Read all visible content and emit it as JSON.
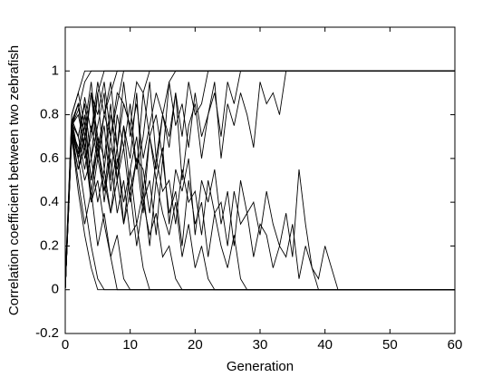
{
  "chart_data": {
    "type": "line",
    "xlabel": "Generation",
    "ylabel": "Correlation coefficient between two zebrafish",
    "xlim": [
      0,
      60
    ],
    "xticks": [
      0,
      10,
      20,
      30,
      40,
      50,
      60
    ],
    "ylim": [
      -0.2,
      1.2
    ],
    "yticks": [
      -0.2,
      0,
      0.2,
      0.4,
      0.6,
      0.8,
      1
    ],
    "grid": false,
    "color": "#000000",
    "series": [
      {
        "x": [
          0,
          1,
          2,
          3,
          4,
          60
        ],
        "values": [
          0,
          0.75,
          0.82,
          0.95,
          1,
          1
        ]
      },
      {
        "x": [
          0,
          1,
          2,
          3,
          4,
          5,
          6,
          60
        ],
        "values": [
          0,
          0.72,
          0.6,
          0.4,
          0.2,
          0.05,
          0,
          0
        ]
      },
      {
        "x": [
          0,
          1,
          2,
          3,
          4,
          5,
          6,
          60
        ],
        "values": [
          0.05,
          0.78,
          0.7,
          0.85,
          0.6,
          0.9,
          1,
          1
        ]
      },
      {
        "x": [
          0,
          1,
          2,
          3,
          4,
          5,
          6,
          7,
          8,
          60
        ],
        "values": [
          0,
          0.7,
          0.55,
          0.65,
          0.4,
          0.5,
          0.3,
          0.15,
          0,
          0
        ]
      },
      {
        "x": [
          0,
          1,
          2,
          3,
          4,
          5,
          6,
          7,
          8,
          9,
          60
        ],
        "values": [
          0,
          0.76,
          0.85,
          0.7,
          0.9,
          0.8,
          0.95,
          0.7,
          0.85,
          1,
          1
        ]
      },
      {
        "x": [
          0,
          1,
          2,
          3,
          4,
          5,
          6,
          7,
          8,
          9,
          10,
          11,
          12,
          13,
          60
        ],
        "values": [
          0,
          0.74,
          0.6,
          0.75,
          0.5,
          0.65,
          0.45,
          0.6,
          0.35,
          0.5,
          0.25,
          0.3,
          0.1,
          0,
          0
        ]
      },
      {
        "x": [
          0,
          1,
          2,
          3,
          4,
          5,
          6,
          7,
          8,
          9,
          10,
          11,
          12,
          13,
          60
        ],
        "values": [
          0,
          0.8,
          0.9,
          0.75,
          0.95,
          0.65,
          0.8,
          0.7,
          0.9,
          0.85,
          0.75,
          0.95,
          0.9,
          1,
          1
        ]
      },
      {
        "x": [
          0,
          1,
          2,
          3,
          4,
          5,
          6,
          7,
          8,
          9,
          10,
          60
        ],
        "values": [
          0,
          0.7,
          0.5,
          0.3,
          0.45,
          0.2,
          0.35,
          0.15,
          0.25,
          0.05,
          0,
          0
        ]
      },
      {
        "x": [
          0,
          1,
          2,
          3,
          4,
          5,
          6,
          7,
          8,
          9,
          10,
          11,
          12,
          13,
          14,
          15,
          16,
          17,
          60
        ],
        "values": [
          0,
          0.77,
          0.85,
          0.6,
          0.7,
          0.9,
          0.55,
          0.8,
          0.65,
          0.95,
          0.7,
          0.85,
          0.6,
          0.75,
          0.9,
          0.8,
          0.95,
          1,
          1
        ]
      },
      {
        "x": [
          0,
          1,
          2,
          3,
          4,
          5,
          6,
          7,
          8,
          9,
          10,
          11,
          12,
          13,
          14,
          15,
          16,
          17,
          18,
          60
        ],
        "values": [
          0,
          0.73,
          0.65,
          0.5,
          0.6,
          0.4,
          0.55,
          0.35,
          0.5,
          0.3,
          0.45,
          0.2,
          0.4,
          0.25,
          0.35,
          0.15,
          0.2,
          0.05,
          0,
          0
        ]
      },
      {
        "x": [
          0,
          1,
          2,
          3,
          4,
          5,
          6,
          7,
          8,
          9,
          10,
          11,
          12,
          13,
          14,
          15,
          16,
          17,
          18,
          19,
          20,
          21,
          22,
          60
        ],
        "values": [
          0,
          0.75,
          0.8,
          0.65,
          0.9,
          0.7,
          0.6,
          0.85,
          0.5,
          0.75,
          0.6,
          0.9,
          0.45,
          0.7,
          0.55,
          0.8,
          0.65,
          0.9,
          0.7,
          0.95,
          0.8,
          0.85,
          1,
          1
        ]
      },
      {
        "x": [
          0,
          1,
          2,
          3,
          4,
          5,
          6,
          7,
          8,
          9,
          10,
          11,
          12,
          13,
          14,
          15,
          16,
          17,
          18,
          19,
          20,
          21,
          22,
          23,
          60
        ],
        "values": [
          0,
          0.76,
          0.6,
          0.7,
          0.45,
          0.65,
          0.5,
          0.35,
          0.6,
          0.4,
          0.55,
          0.3,
          0.45,
          0.2,
          0.5,
          0.35,
          0.25,
          0.4,
          0.15,
          0.3,
          0.1,
          0.2,
          0.05,
          0,
          0
        ]
      },
      {
        "x": [
          0,
          1,
          2,
          3,
          4,
          5,
          6,
          7,
          8,
          9,
          10,
          11,
          12,
          13,
          14,
          15,
          16,
          17,
          18,
          19,
          20,
          21,
          22,
          23,
          24,
          25,
          26,
          27,
          60
        ],
        "values": [
          0,
          0.78,
          0.7,
          0.85,
          0.6,
          0.75,
          0.9,
          0.5,
          0.8,
          0.65,
          0.85,
          0.55,
          0.7,
          0.95,
          0.6,
          0.8,
          0.7,
          0.9,
          0.5,
          0.75,
          0.85,
          0.6,
          0.8,
          0.9,
          0.7,
          0.95,
          0.85,
          1,
          1
        ]
      },
      {
        "x": [
          0,
          1,
          2,
          3,
          4,
          5,
          6,
          7,
          8,
          9,
          10,
          11,
          12,
          13,
          14,
          15,
          16,
          17,
          18,
          19,
          20,
          21,
          22,
          23,
          24,
          25,
          26,
          27,
          28,
          60
        ],
        "values": [
          0,
          0.72,
          0.55,
          0.7,
          0.4,
          0.6,
          0.75,
          0.45,
          0.65,
          0.3,
          0.55,
          0.7,
          0.4,
          0.5,
          0.25,
          0.6,
          0.35,
          0.45,
          0.2,
          0.5,
          0.3,
          0.4,
          0.15,
          0.35,
          0.2,
          0.1,
          0.25,
          0.05,
          0,
          0
        ]
      },
      {
        "x": [
          0,
          1,
          2,
          3,
          4,
          5,
          6,
          7,
          8,
          9,
          10,
          11,
          12,
          13,
          14,
          15,
          16,
          17,
          18,
          19,
          20,
          21,
          22,
          23,
          24,
          25,
          26,
          27,
          28,
          29,
          30,
          31,
          32,
          33,
          34,
          60
        ],
        "values": [
          0,
          0.75,
          0.85,
          0.7,
          0.9,
          0.6,
          0.8,
          0.95,
          0.65,
          0.85,
          0.75,
          0.55,
          0.9,
          0.7,
          0.8,
          0.6,
          0.95,
          0.75,
          0.85,
          0.65,
          0.9,
          0.7,
          0.8,
          0.95,
          0.6,
          0.85,
          0.75,
          0.9,
          0.8,
          0.65,
          0.95,
          0.85,
          0.9,
          0.8,
          1,
          1
        ]
      },
      {
        "x": [
          0,
          1,
          2,
          3,
          4,
          5,
          6,
          7,
          8,
          9,
          10,
          11,
          12,
          13,
          14,
          15,
          16,
          17,
          18,
          19,
          20,
          21,
          22,
          23,
          24,
          25,
          26,
          27,
          28,
          29,
          30,
          31,
          32,
          33,
          34,
          35,
          36,
          37,
          38,
          39,
          60
        ],
        "values": [
          0,
          0.74,
          0.6,
          0.8,
          0.5,
          0.7,
          0.4,
          0.65,
          0.55,
          0.75,
          0.45,
          0.6,
          0.35,
          0.7,
          0.5,
          0.65,
          0.3,
          0.55,
          0.45,
          0.6,
          0.25,
          0.5,
          0.4,
          0.55,
          0.3,
          0.45,
          0.2,
          0.5,
          0.35,
          0.4,
          0.25,
          0.45,
          0.3,
          0.2,
          0.35,
          0.15,
          0.55,
          0.3,
          0.1,
          0,
          0
        ]
      },
      {
        "x": [
          0,
          1,
          2,
          3,
          4,
          5,
          6,
          7,
          8,
          9,
          10,
          11,
          12,
          13,
          14,
          15,
          16,
          17,
          18,
          19,
          20,
          21,
          22,
          23,
          24,
          25,
          26,
          27,
          28,
          29,
          30,
          31,
          32,
          33,
          34,
          35,
          36,
          37,
          38,
          39,
          40,
          41,
          42,
          60
        ],
        "values": [
          0,
          0.76,
          0.7,
          0.55,
          0.75,
          0.6,
          0.45,
          0.7,
          0.5,
          0.65,
          0.4,
          0.6,
          0.55,
          0.35,
          0.6,
          0.45,
          0.5,
          0.3,
          0.55,
          0.4,
          0.45,
          0.25,
          0.5,
          0.35,
          0.4,
          0.2,
          0.45,
          0.3,
          0.35,
          0.15,
          0.3,
          0.25,
          0.1,
          0.2,
          0.15,
          0.3,
          0.05,
          0.2,
          0.1,
          0.05,
          0.2,
          0.1,
          0,
          0
        ]
      },
      {
        "x": [
          0,
          1,
          2,
          3,
          60
        ],
        "values": [
          0.05,
          0.8,
          0.9,
          1,
          1
        ]
      },
      {
        "x": [
          0,
          1,
          2,
          3,
          4,
          5,
          60
        ],
        "values": [
          0,
          0.7,
          0.45,
          0.25,
          0.1,
          0,
          0
        ]
      },
      {
        "x": [
          0,
          1,
          2,
          3,
          4,
          5,
          6,
          7,
          8,
          60
        ],
        "values": [
          0,
          0.78,
          0.62,
          0.88,
          0.72,
          0.95,
          0.8,
          0.9,
          1,
          1
        ]
      }
    ]
  }
}
